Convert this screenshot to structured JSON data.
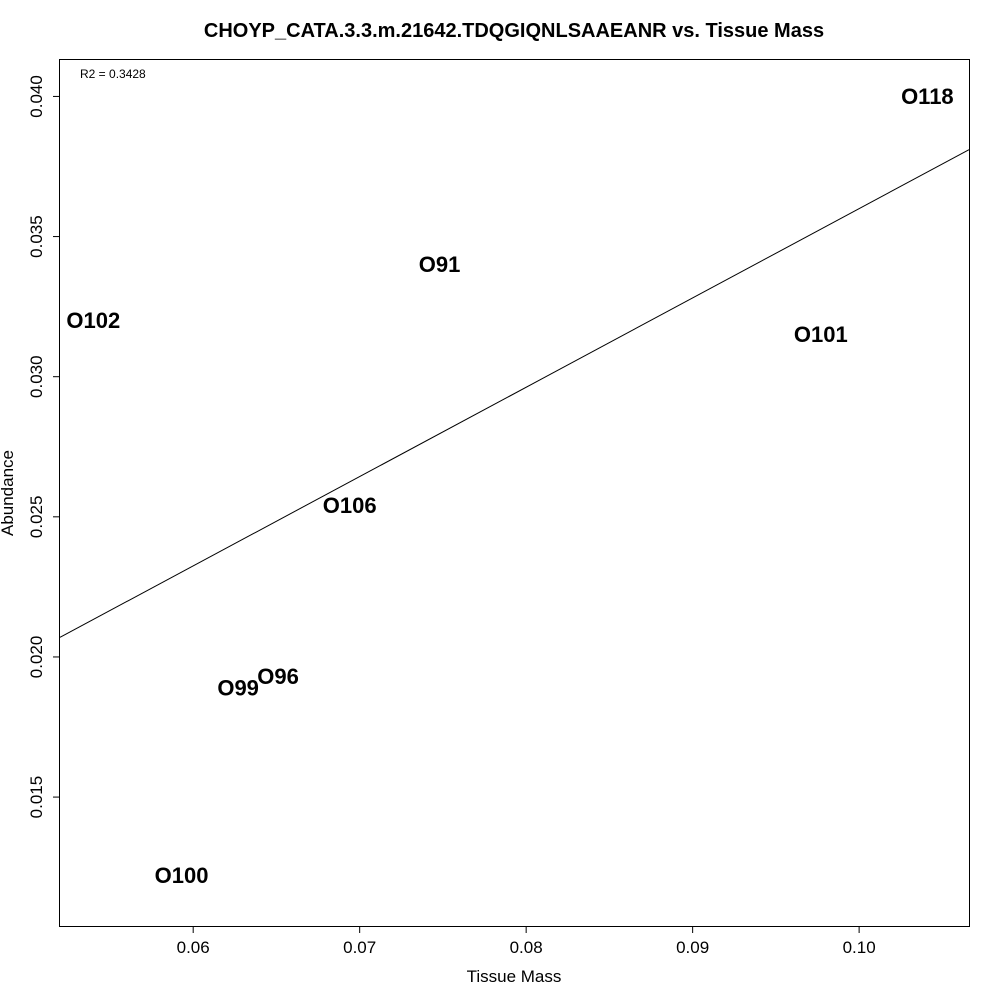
{
  "chart_data": {
    "type": "scatter",
    "title": "CHOYP_CATA.3.3.m.21642.TDQGIQNLSAAEANR vs. Tissue Mass",
    "xlabel": "Tissue Mass",
    "ylabel": "Abundance",
    "annotation": "R2 = 0.3428",
    "xlim": [
      0.052,
      0.1066
    ],
    "ylim": [
      0.0104,
      0.0413
    ],
    "x_ticks": [
      {
        "value": 0.06,
        "label": "0.06"
      },
      {
        "value": 0.07,
        "label": "0.07"
      },
      {
        "value": 0.08,
        "label": "0.08"
      },
      {
        "value": 0.09,
        "label": "0.09"
      },
      {
        "value": 0.1,
        "label": "0.10"
      }
    ],
    "y_ticks": [
      {
        "value": 0.015,
        "label": "0.015"
      },
      {
        "value": 0.02,
        "label": "0.020"
      },
      {
        "value": 0.025,
        "label": "0.025"
      },
      {
        "value": 0.03,
        "label": "0.030"
      },
      {
        "value": 0.035,
        "label": "0.035"
      },
      {
        "value": 0.04,
        "label": "0.040"
      }
    ],
    "points": [
      {
        "label": "O118",
        "x": 0.1041,
        "y": 0.04
      },
      {
        "label": "O91",
        "x": 0.0748,
        "y": 0.034
      },
      {
        "label": "O102",
        "x": 0.054,
        "y": 0.032
      },
      {
        "label": "O101",
        "x": 0.0977,
        "y": 0.0315
      },
      {
        "label": "O106",
        "x": 0.0694,
        "y": 0.0254
      },
      {
        "label": "O96",
        "x": 0.0651,
        "y": 0.0193
      },
      {
        "label": "O99",
        "x": 0.0627,
        "y": 0.0189
      },
      {
        "label": "O100",
        "x": 0.0593,
        "y": 0.0122
      }
    ],
    "regression_line": {
      "x": [
        0.052,
        0.1066
      ],
      "y": [
        0.0207,
        0.0381
      ]
    },
    "grid": false,
    "legend": false
  }
}
